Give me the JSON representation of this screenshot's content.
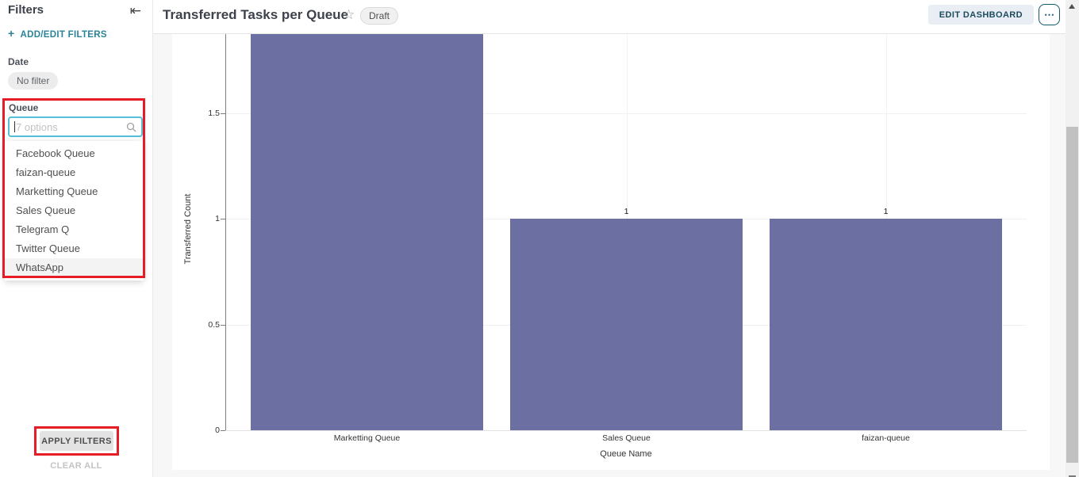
{
  "sidebar": {
    "title": "Filters",
    "add_icon": "+",
    "add_edit_label": "ADD/EDIT FILTERS",
    "date_label": "Date",
    "date_value": "No filter",
    "queue_label": "Queue",
    "queue_placeholder": "7 options",
    "queue_options": [
      "Facebook Queue",
      "faizan-queue",
      "Marketting Queue",
      "Sales Queue",
      "Telegram Q",
      "Twitter Queue",
      "WhatsApp"
    ],
    "highlighted_option": "WhatsApp",
    "apply_button": "APPLY FILTERS",
    "clear_all": "CLEAR ALL"
  },
  "header": {
    "title": "Transferred Tasks per Queue",
    "star_icon": "☆",
    "badge": "Draft",
    "edit_button": "EDIT DASHBOARD",
    "more_button": "⋯"
  },
  "chart_data": {
    "type": "bar",
    "categories": [
      "Marketting Queue",
      "Sales Queue",
      "faizan-queue"
    ],
    "values": [
      2,
      1,
      1
    ],
    "xlabel": "Queue Name",
    "ylabel": "Transferred Count",
    "yticks": [
      0,
      0.5,
      1,
      1.5
    ],
    "ylim_visible": [
      0,
      1.87
    ],
    "bar_color": "#6b6fa1",
    "grid": true,
    "legend": "none",
    "note": "Top of first bar (value 2) is clipped by the scrolled viewport"
  },
  "colors": {
    "accent_teal": "#2a8399",
    "button_teal_dark": "#11586e",
    "bar_purple": "#6b6fa1",
    "annotation_red": "#e51d26",
    "content_bg": "#f7f7f8"
  },
  "icons": {
    "collapse": "⇤"
  }
}
